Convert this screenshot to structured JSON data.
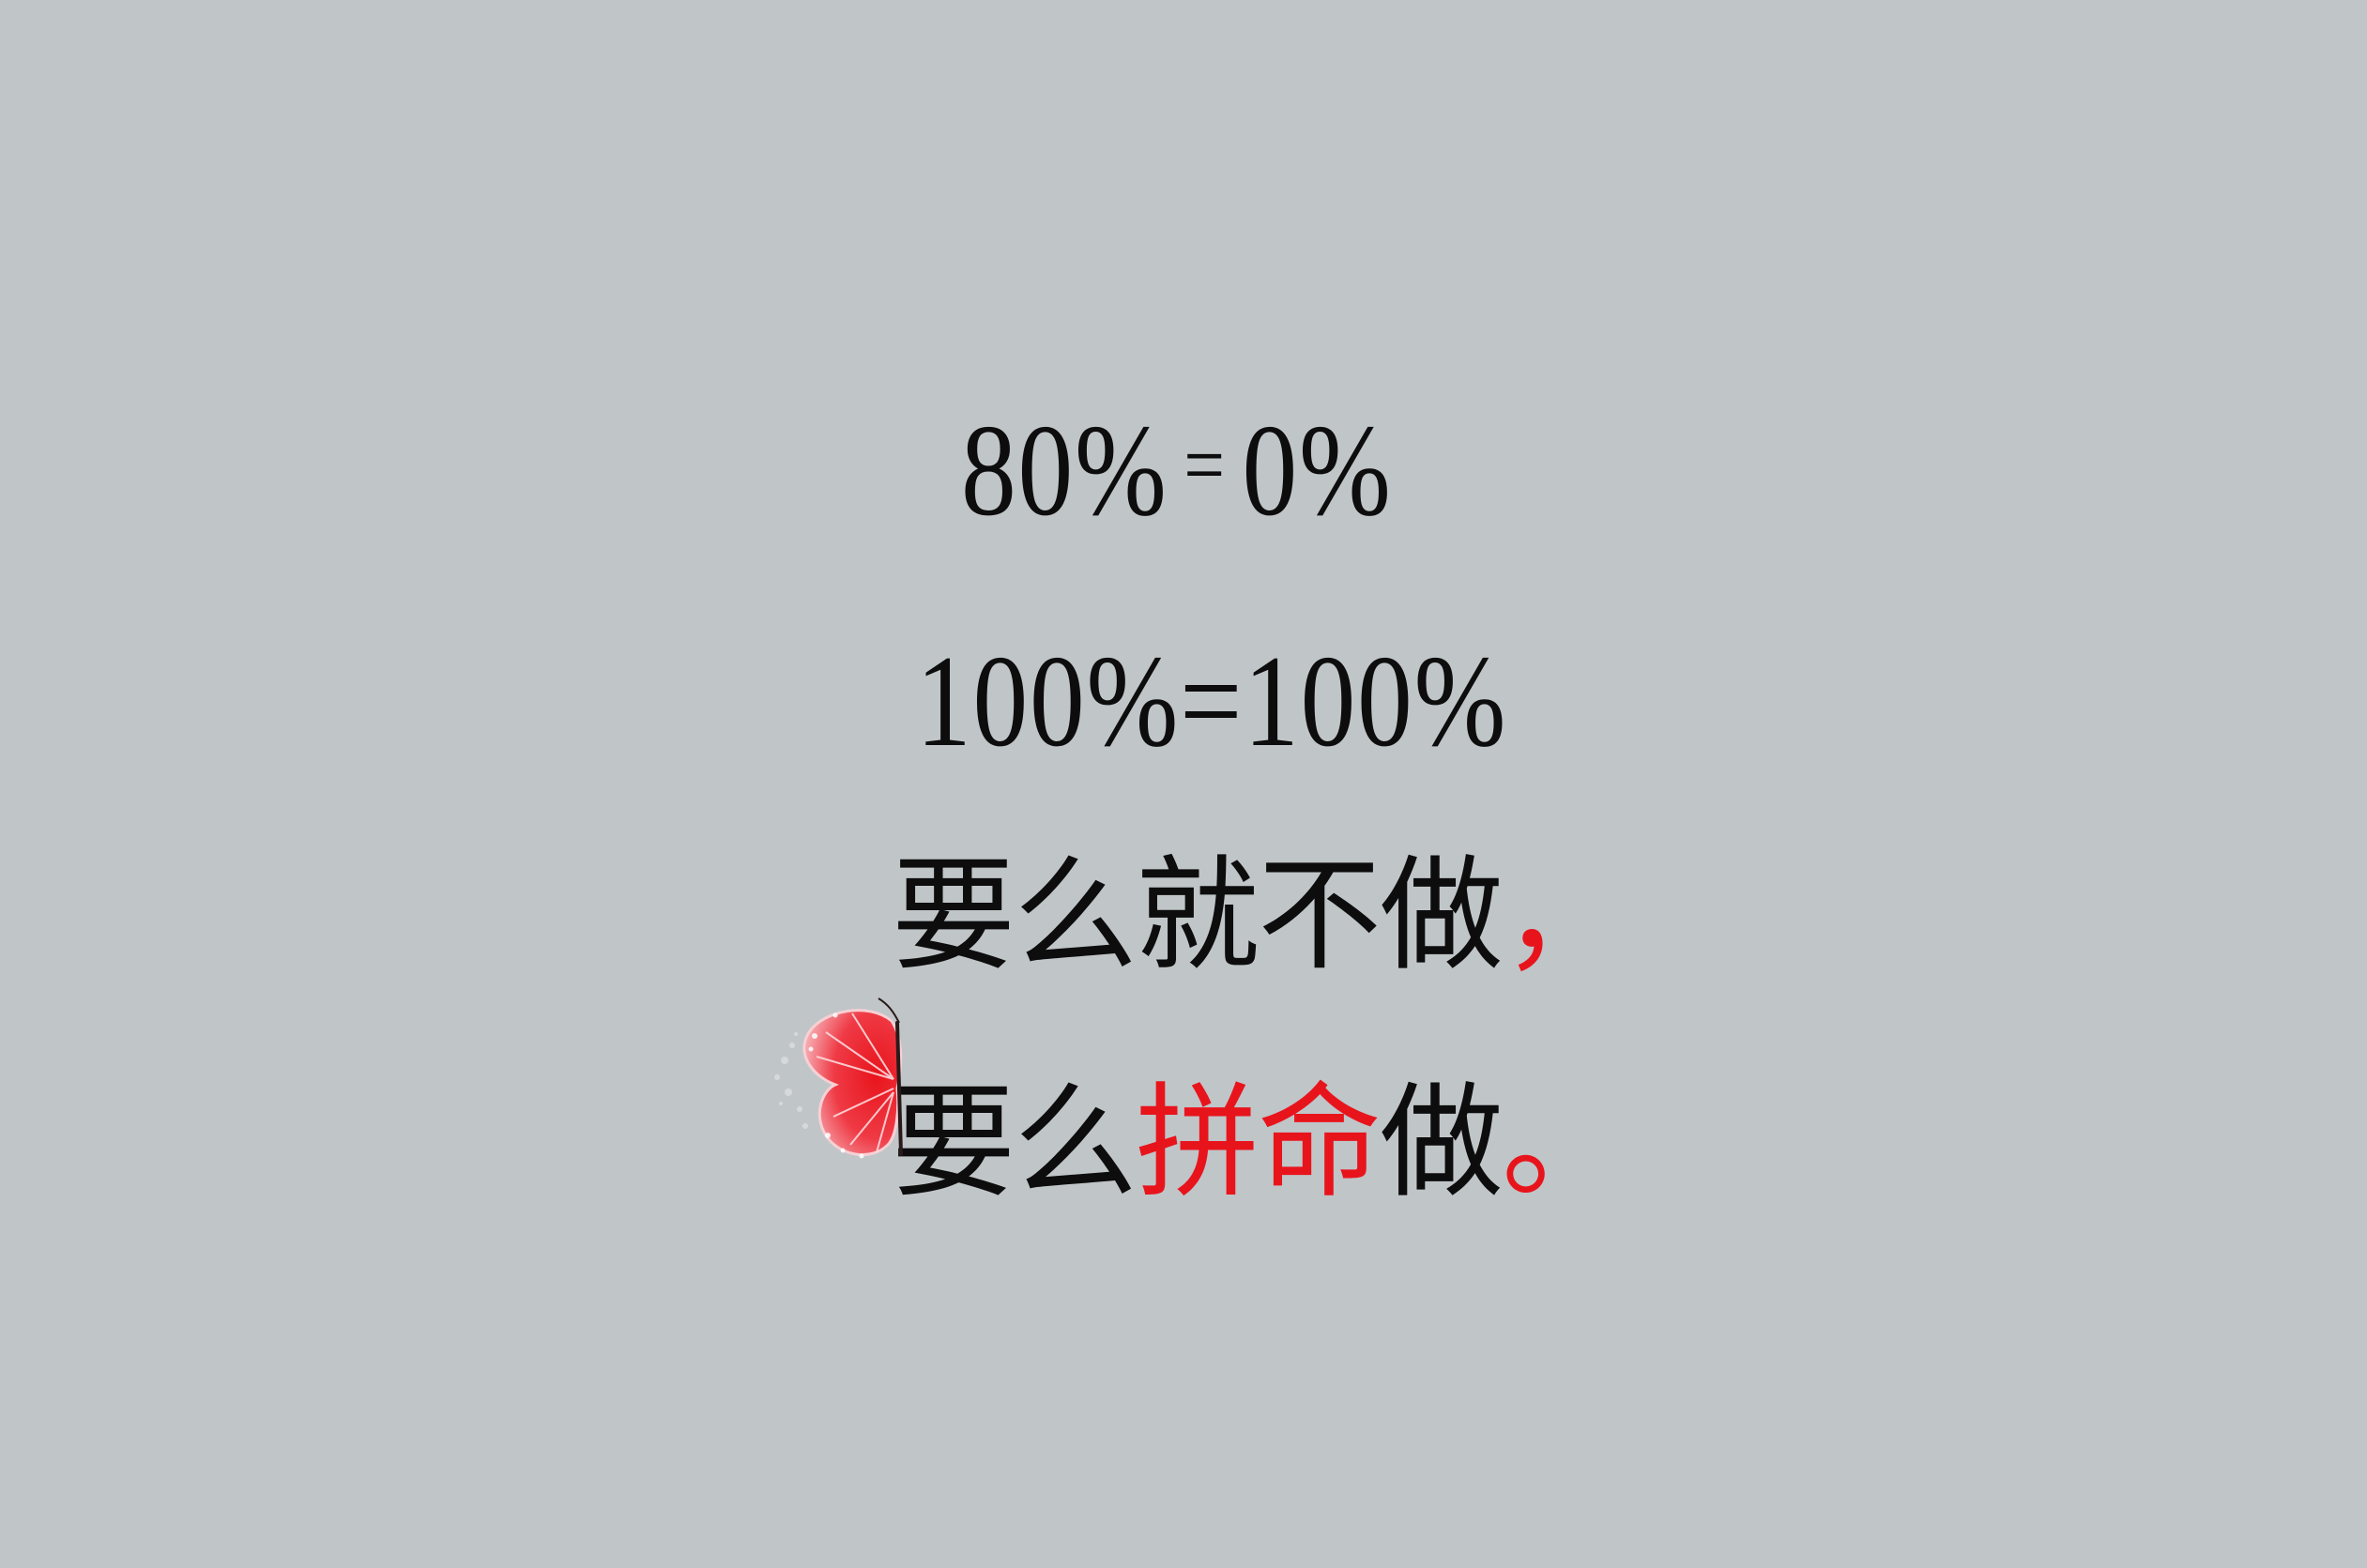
{
  "lines": {
    "line1": {
      "left": "80%",
      "eq": "=",
      "right": "0%"
    },
    "line2": {
      "text": "100%=100%"
    },
    "line3": {
      "main": "要么就不做",
      "comma": "，"
    },
    "line4": {
      "lead": "要么",
      "emphasis": "拼命",
      "tail": "做",
      "period": "。"
    }
  },
  "colors": {
    "background": "#c0c5c8",
    "text": "#0d0d0d",
    "accent": "#e8141c"
  },
  "decoration": {
    "icon": "butterfly-icon"
  }
}
